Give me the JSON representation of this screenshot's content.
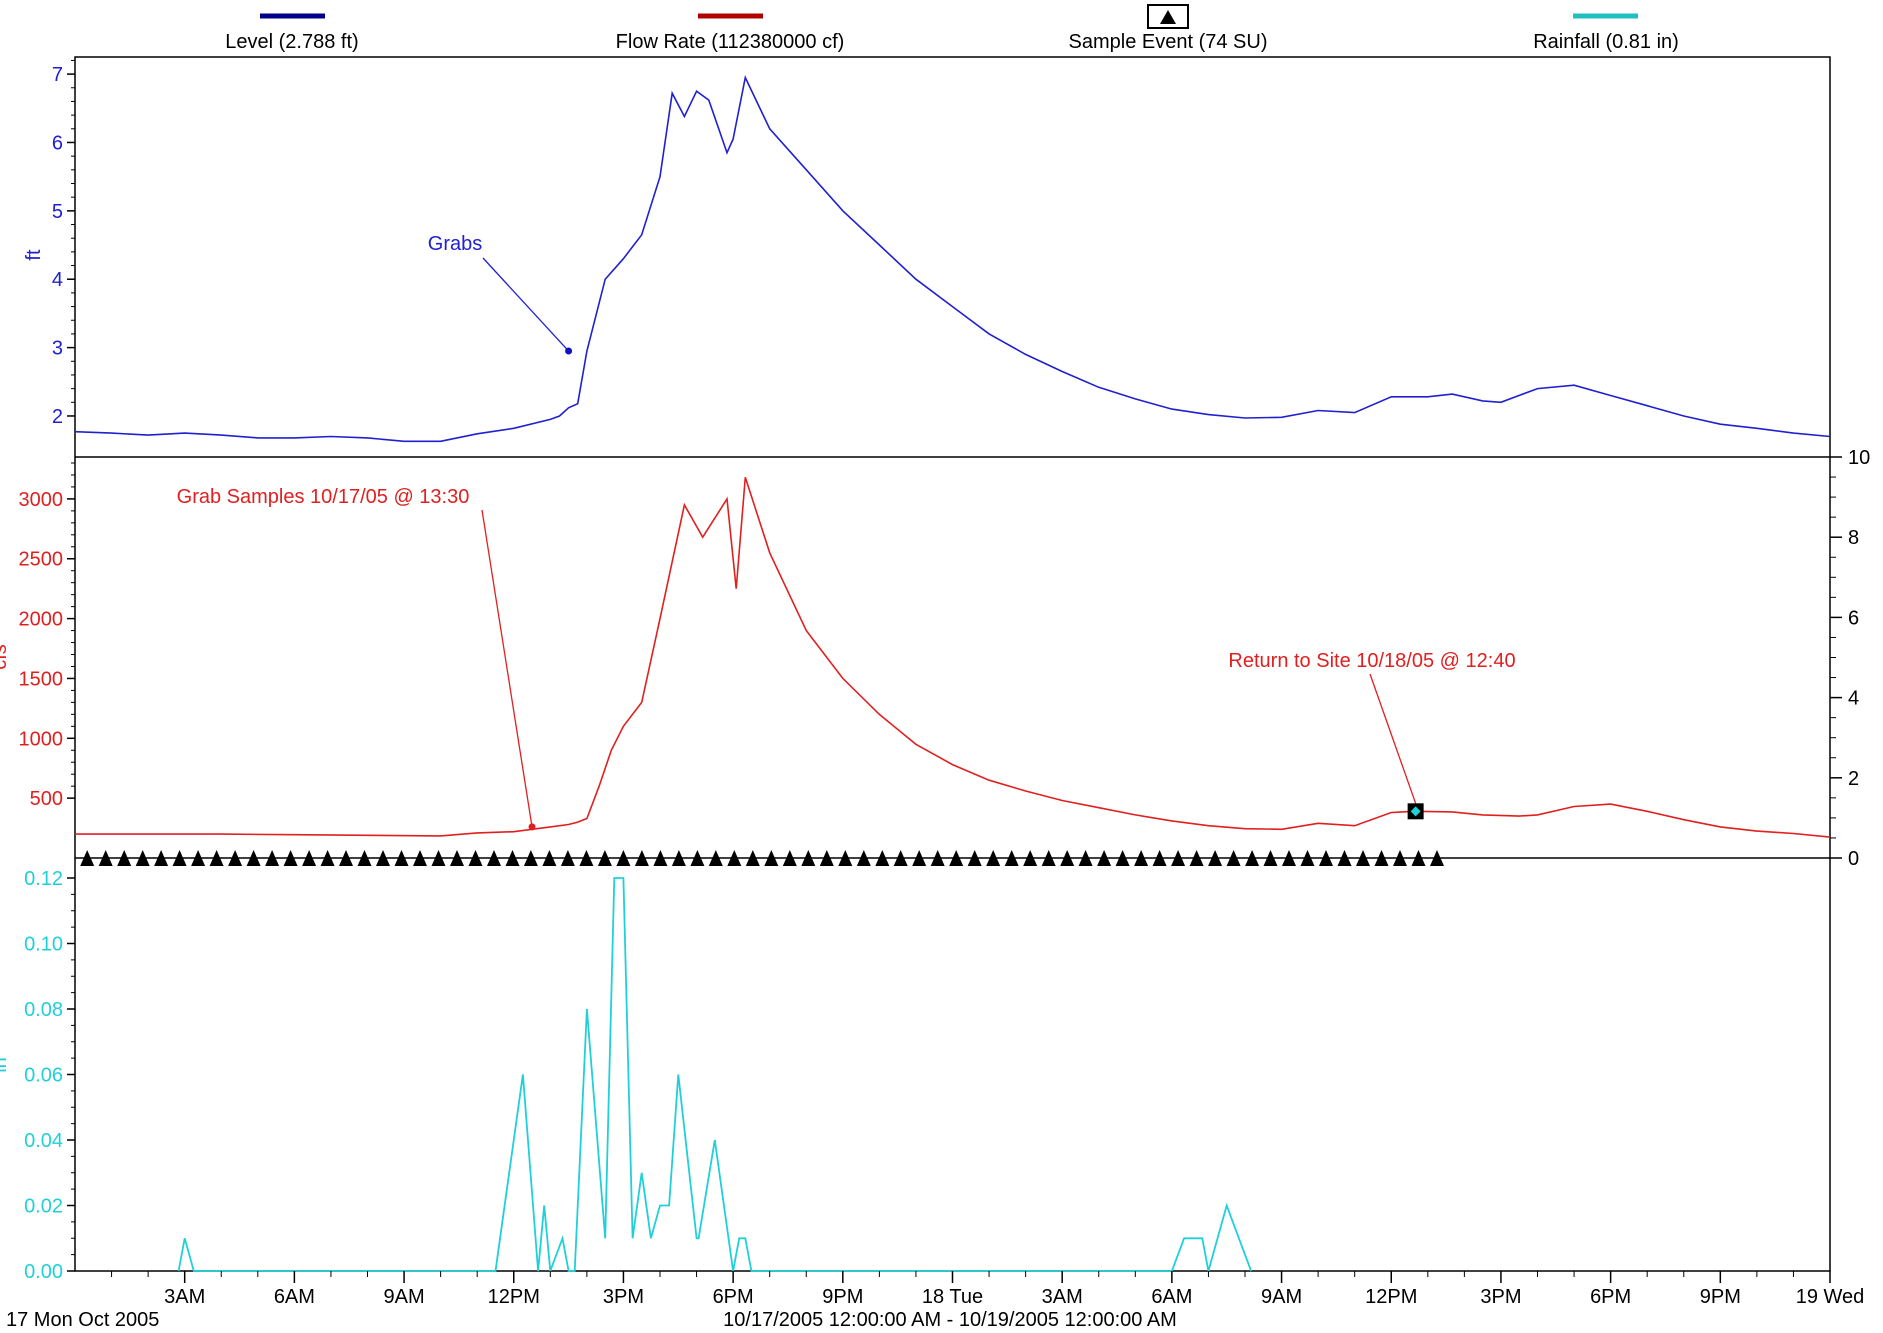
{
  "chart_data": {
    "type": "line",
    "x_range_text": "10/17/2005 12:00:00 AM - 10/19/2005 12:00:00 AM",
    "x_start_label": "17 Mon Oct 2005",
    "x_start": "2005-10-17 00:00",
    "x_end": "2005-10-19 00:00",
    "x_tick_labels": [
      {
        "t": "2005-10-17 03:00",
        "label": "3AM"
      },
      {
        "t": "2005-10-17 06:00",
        "label": "6AM"
      },
      {
        "t": "2005-10-17 09:00",
        "label": "9AM"
      },
      {
        "t": "2005-10-17 12:00",
        "label": "12PM"
      },
      {
        "t": "2005-10-17 15:00",
        "label": "3PM"
      },
      {
        "t": "2005-10-17 18:00",
        "label": "6PM"
      },
      {
        "t": "2005-10-17 21:00",
        "label": "9PM"
      },
      {
        "t": "2005-10-18 00:00",
        "label": "18 Tue"
      },
      {
        "t": "2005-10-18 03:00",
        "label": "3AM"
      },
      {
        "t": "2005-10-18 06:00",
        "label": "6AM"
      },
      {
        "t": "2005-10-18 09:00",
        "label": "9AM"
      },
      {
        "t": "2005-10-18 12:00",
        "label": "12PM"
      },
      {
        "t": "2005-10-18 15:00",
        "label": "3PM"
      },
      {
        "t": "2005-10-18 18:00",
        "label": "6PM"
      },
      {
        "t": "2005-10-18 21:00",
        "label": "9PM"
      },
      {
        "t": "2005-10-19 00:00",
        "label": "19 Wed"
      }
    ],
    "legend": [
      {
        "label": "Level (2.788 ft)",
        "color": "#00008b",
        "marker": "line"
      },
      {
        "label": "Flow Rate (112380000 cf)",
        "color": "#b00000",
        "marker": "line"
      },
      {
        "label": "Sample Event (74 SU)",
        "color": "#000000",
        "marker": "triangle-box"
      },
      {
        "label": "Rainfall (0.81 in)",
        "color": "#20c0c0",
        "marker": "line"
      }
    ],
    "panels": [
      {
        "name": "level",
        "ylabel": "ft",
        "color": "#2020d0",
        "ylim": [
          1.4,
          7.25
        ],
        "y_ticks": [
          "2",
          "3",
          "4",
          "5",
          "6",
          "7"
        ],
        "series": {
          "name": "Level",
          "x": [
            "2005-10-17 00:00",
            "2005-10-17 01:00",
            "2005-10-17 02:00",
            "2005-10-17 03:00",
            "2005-10-17 04:00",
            "2005-10-17 05:00",
            "2005-10-17 06:00",
            "2005-10-17 07:00",
            "2005-10-17 08:00",
            "2005-10-17 09:00",
            "2005-10-17 10:00",
            "2005-10-17 11:00",
            "2005-10-17 12:00",
            "2005-10-17 13:00",
            "2005-10-17 13:15",
            "2005-10-17 13:30",
            "2005-10-17 13:45",
            "2005-10-17 14:00",
            "2005-10-17 14:30",
            "2005-10-17 15:00",
            "2005-10-17 15:30",
            "2005-10-17 16:00",
            "2005-10-17 16:20",
            "2005-10-17 16:40",
            "2005-10-17 17:00",
            "2005-10-17 17:20",
            "2005-10-17 17:50",
            "2005-10-17 18:00",
            "2005-10-17 18:20",
            "2005-10-17 19:00",
            "2005-10-17 20:00",
            "2005-10-17 21:00",
            "2005-10-17 22:00",
            "2005-10-17 23:00",
            "2005-10-18 00:00",
            "2005-10-18 01:00",
            "2005-10-18 02:00",
            "2005-10-18 03:00",
            "2005-10-18 04:00",
            "2005-10-18 05:00",
            "2005-10-18 06:00",
            "2005-10-18 07:00",
            "2005-10-18 08:00",
            "2005-10-18 09:00",
            "2005-10-18 10:00",
            "2005-10-18 11:00",
            "2005-10-18 12:00",
            "2005-10-18 13:00",
            "2005-10-18 13:40",
            "2005-10-18 14:30",
            "2005-10-18 15:00",
            "2005-10-18 16:00",
            "2005-10-18 17:00",
            "2005-10-18 18:00",
            "2005-10-18 19:00",
            "2005-10-18 20:00",
            "2005-10-18 21:00",
            "2005-10-18 22:00",
            "2005-10-18 23:00",
            "2005-10-19 00:00"
          ],
          "y": [
            1.77,
            1.75,
            1.72,
            1.75,
            1.72,
            1.68,
            1.68,
            1.7,
            1.68,
            1.63,
            1.63,
            1.74,
            1.82,
            1.95,
            2.0,
            2.12,
            2.18,
            2.95,
            4.0,
            4.3,
            4.65,
            5.5,
            6.72,
            6.38,
            6.75,
            6.62,
            5.85,
            6.05,
            6.95,
            6.2,
            5.6,
            5.0,
            4.5,
            4.0,
            3.6,
            3.2,
            2.9,
            2.65,
            2.42,
            2.25,
            2.1,
            2.02,
            1.97,
            1.98,
            2.08,
            2.05,
            2.28,
            2.28,
            2.32,
            2.22,
            2.2,
            2.4,
            2.45,
            2.3,
            2.15,
            2.0,
            1.88,
            1.82,
            1.75,
            1.7
          ]
        },
        "annotations": [
          {
            "text": "Grabs",
            "t": "2005-10-17 13:30",
            "value": 2.95
          }
        ]
      },
      {
        "name": "flow",
        "ylabel": "cfs",
        "color": "#e02020",
        "ylim": [
          0,
          3350
        ],
        "y_ticks": [
          "500",
          "1000",
          "1500",
          "2000",
          "2500",
          "3000"
        ],
        "right_axis": {
          "ylim": [
            0,
            10
          ],
          "y_ticks": [
            "0",
            "2",
            "4",
            "6",
            "8",
            "10"
          ]
        },
        "series": {
          "name": "Flow Rate",
          "x": [
            "2005-10-17 00:00",
            "2005-10-17 02:00",
            "2005-10-17 04:00",
            "2005-10-17 06:00",
            "2005-10-17 08:00",
            "2005-10-17 10:00",
            "2005-10-17 11:00",
            "2005-10-17 12:00",
            "2005-10-17 12:30",
            "2005-10-17 13:00",
            "2005-10-17 13:30",
            "2005-10-17 13:45",
            "2005-10-17 14:00",
            "2005-10-17 14:20",
            "2005-10-17 14:40",
            "2005-10-17 15:00",
            "2005-10-17 15:30",
            "2005-10-17 16:00",
            "2005-10-17 16:40",
            "2005-10-17 17:10",
            "2005-10-17 17:50",
            "2005-10-17 18:05",
            "2005-10-17 18:20",
            "2005-10-17 19:00",
            "2005-10-17 20:00",
            "2005-10-17 21:00",
            "2005-10-17 22:00",
            "2005-10-17 23:00",
            "2005-10-18 00:00",
            "2005-10-18 01:00",
            "2005-10-18 02:00",
            "2005-10-18 03:00",
            "2005-10-18 04:00",
            "2005-10-18 05:00",
            "2005-10-18 06:00",
            "2005-10-18 07:00",
            "2005-10-18 08:00",
            "2005-10-18 09:00",
            "2005-10-18 10:00",
            "2005-10-18 11:00",
            "2005-10-18 12:00",
            "2005-10-18 12:40",
            "2005-10-18 13:40",
            "2005-10-18 14:30",
            "2005-10-18 15:30",
            "2005-10-18 16:00",
            "2005-10-18 17:00",
            "2005-10-18 18:00",
            "2005-10-18 19:00",
            "2005-10-18 20:00",
            "2005-10-18 21:00",
            "2005-10-18 22:00",
            "2005-10-18 23:00",
            "2005-10-19 00:00"
          ],
          "y": [
            200,
            200,
            200,
            195,
            190,
            185,
            210,
            220,
            240,
            260,
            280,
            300,
            330,
            600,
            900,
            1100,
            1300,
            2000,
            2950,
            2680,
            3000,
            2250,
            3180,
            2550,
            1900,
            1500,
            1200,
            950,
            780,
            650,
            560,
            480,
            420,
            360,
            310,
            270,
            245,
            240,
            290,
            270,
            380,
            390,
            385,
            360,
            350,
            360,
            430,
            450,
            390,
            320,
            260,
            225,
            205,
            175
          ]
        },
        "annotations": [
          {
            "text": "Grab Samples 10/17/05 @ 13:30",
            "t": "2005-10-17 12:30",
            "value": 260
          },
          {
            "text": "Return to Site 10/18/05 @ 12:40",
            "t": "2005-10-18 12:40",
            "value": 390
          }
        ]
      },
      {
        "name": "sample_event",
        "series": {
          "name": "Sample Event",
          "count": 74,
          "x_first": "2005-10-17 00:20",
          "x_last": "2005-10-18 13:15"
        }
      },
      {
        "name": "rainfall",
        "ylabel": "in",
        "color": "#20d0d8",
        "ylim": [
          0,
          0.12
        ],
        "y_ticks": [
          "0.00",
          "0.02",
          "0.04",
          "0.06",
          "0.08",
          "0.10",
          "0.12"
        ],
        "series": {
          "name": "Rainfall",
          "x": [
            "2005-10-17 02:50",
            "2005-10-17 03:00",
            "2005-10-17 03:15",
            "2005-10-17 11:30",
            "2005-10-17 12:15",
            "2005-10-17 12:40",
            "2005-10-17 12:50",
            "2005-10-17 13:00",
            "2005-10-17 13:20",
            "2005-10-17 13:30",
            "2005-10-17 13:40",
            "2005-10-17 14:00",
            "2005-10-17 14:30",
            "2005-10-17 14:45",
            "2005-10-17 15:00",
            "2005-10-17 15:15",
            "2005-10-17 15:30",
            "2005-10-17 15:45",
            "2005-10-17 16:00",
            "2005-10-17 16:15",
            "2005-10-17 16:30",
            "2005-10-17 17:00",
            "17:00b",
            "2005-10-17 17:30",
            "2005-10-17 18:00",
            "2005-10-17 18:10",
            "2005-10-17 18:20",
            "2005-10-17 18:30",
            "2005-10-18 06:00",
            "2005-10-18 06:20",
            "2005-10-18 06:50",
            "2005-10-18 07:00",
            "2005-10-18 07:30",
            "2005-10-18 07:50",
            "2005-10-18 08:10"
          ],
          "y": [
            0,
            0.01,
            0,
            0,
            0.06,
            0,
            0.02,
            0,
            0.01,
            0,
            0,
            0.08,
            0.01,
            0.12,
            0.12,
            0.01,
            0.03,
            0.01,
            0.02,
            0.02,
            0.06,
            0.01,
            0.01,
            0.04,
            0,
            0.01,
            0.01,
            0,
            0,
            0.01,
            0.01,
            0,
            0.02,
            0.01,
            0
          ]
        }
      }
    ]
  }
}
